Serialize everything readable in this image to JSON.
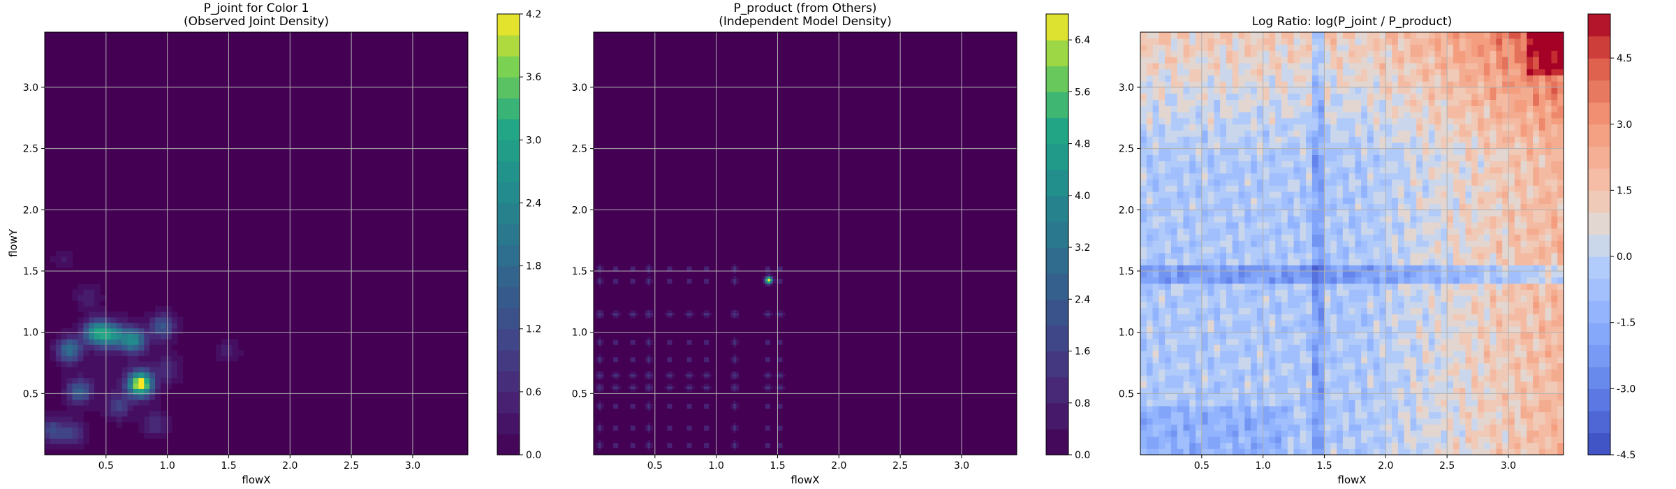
{
  "chart_data": [
    {
      "type": "heatmap",
      "title_lines": [
        "P_joint for Color 1",
        "(Observed Joint Density)"
      ],
      "xlabel": "flowX",
      "ylabel": "flowY",
      "xlim": [
        0.0,
        3.45
      ],
      "ylim": [
        0.0,
        3.45
      ],
      "xticks": [
        "0.5",
        "1.0",
        "1.5",
        "2.0",
        "2.5",
        "3.0"
      ],
      "yticks": [
        "0.5",
        "1.0",
        "1.5",
        "2.0",
        "2.5",
        "3.0"
      ],
      "grid": true,
      "colormap": "viridis",
      "background_color": "#440154",
      "colorbar": {
        "min": 0.0,
        "max": 4.2,
        "ticks": [
          "0.0",
          "0.6",
          "1.2",
          "1.8",
          "2.4",
          "3.0",
          "3.6",
          "4.2"
        ],
        "levels": 21
      },
      "hotspots": [
        {
          "x": 0.42,
          "y": 1.0,
          "value": 2.6
        },
        {
          "x": 0.55,
          "y": 0.98,
          "value": 2.2
        },
        {
          "x": 0.72,
          "y": 0.94,
          "value": 2.4
        },
        {
          "x": 0.2,
          "y": 0.86,
          "value": 1.9
        },
        {
          "x": 0.78,
          "y": 0.58,
          "value": 4.2
        },
        {
          "x": 0.96,
          "y": 1.05,
          "value": 1.4
        },
        {
          "x": 0.28,
          "y": 0.52,
          "value": 1.5
        },
        {
          "x": 0.05,
          "y": 0.2,
          "value": 1.2
        },
        {
          "x": 0.22,
          "y": 0.18,
          "value": 1.0
        },
        {
          "x": 0.6,
          "y": 0.4,
          "value": 0.9
        },
        {
          "x": 1.0,
          "y": 0.7,
          "value": 0.6
        },
        {
          "x": 1.5,
          "y": 0.85,
          "value": 0.5
        },
        {
          "x": 0.35,
          "y": 1.3,
          "value": 0.5
        },
        {
          "x": 0.9,
          "y": 0.25,
          "value": 0.7
        },
        {
          "x": 0.15,
          "y": 1.6,
          "value": 0.4
        }
      ]
    },
    {
      "type": "heatmap",
      "title_lines": [
        "P_product (from Others)",
        "(Independent Model Density)"
      ],
      "xlabel": "flowX",
      "ylabel": "",
      "xlim": [
        0.0,
        3.45
      ],
      "ylim": [
        0.0,
        3.45
      ],
      "xticks": [
        "0.5",
        "1.0",
        "1.5",
        "2.0",
        "2.5",
        "3.0"
      ],
      "yticks": [
        "0.5",
        "1.0",
        "1.5",
        "2.0",
        "2.5",
        "3.0"
      ],
      "grid": true,
      "colormap": "viridis",
      "background_color": "#440154",
      "colorbar": {
        "min": 0.0,
        "max": 6.8,
        "ticks": [
          "0.0",
          "0.8",
          "1.6",
          "2.4",
          "3.2",
          "4.0",
          "4.8",
          "5.6",
          "6.4"
        ],
        "levels": 17
      },
      "marginal_x_peaks": [
        0.05,
        0.18,
        0.32,
        0.45,
        0.62,
        0.78,
        0.92,
        1.15,
        1.42,
        1.52
      ],
      "marginal_y_peaks": [
        0.08,
        0.22,
        0.4,
        0.55,
        0.65,
        0.78,
        0.92,
        1.15,
        1.42,
        1.52
      ],
      "peak": {
        "x": 1.42,
        "y": 1.42,
        "value": 6.8
      },
      "support_max": 2.0
    },
    {
      "type": "heatmap",
      "title": "Log Ratio: log(P_joint / P_product)",
      "xlabel": "flowX",
      "ylabel": "",
      "xlim": [
        0.0,
        3.45
      ],
      "ylim": [
        0.0,
        3.45
      ],
      "xticks": [
        "0.5",
        "1.0",
        "1.5",
        "2.0",
        "2.5",
        "3.0"
      ],
      "yticks": [
        "0.5",
        "1.0",
        "1.5",
        "2.0",
        "2.5",
        "3.0"
      ],
      "grid": true,
      "colormap": "coolwarm",
      "colorbar": {
        "min": -4.5,
        "max": 5.5,
        "ticks": [
          "-4.5",
          "-3.0",
          "-1.5",
          "0.0",
          "1.5",
          "3.0",
          "4.5"
        ],
        "levels": 20
      },
      "max_ratio": {
        "x": 3.3,
        "y": 3.3,
        "value": 5.5
      },
      "min_ratio": {
        "x": 0.0,
        "y": 0.0,
        "value": -4.5
      }
    }
  ]
}
